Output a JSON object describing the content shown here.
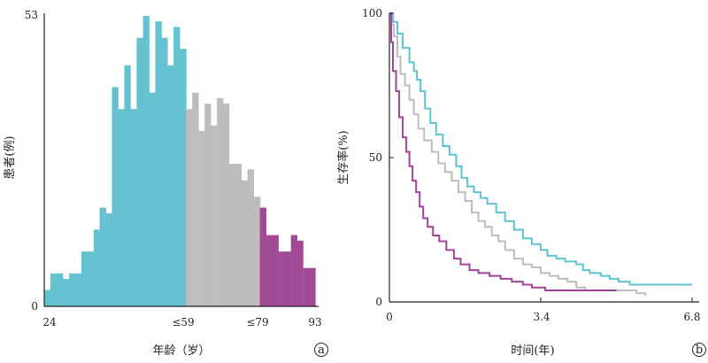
{
  "chart_data": [
    {
      "type": "bar",
      "title": "",
      "xlabel": "年龄（岁）",
      "ylabel": "患者(例)",
      "panel_label": "a",
      "x_tick_labels": [
        "24",
        "≤59",
        "≤79",
        "93"
      ],
      "y_tick_labels": [
        "0",
        "53"
      ],
      "xlim": [
        24,
        93
      ],
      "ylim": [
        0,
        53
      ],
      "grid": false,
      "legend": "none",
      "bin_width": 1.55,
      "groups": [
        {
          "color": "#65C2D0",
          "range": [
            24,
            59
          ]
        },
        {
          "color": "#BDBDBD",
          "range": [
            59,
            79
          ]
        },
        {
          "color": "#A24A96",
          "range": [
            79,
            93
          ]
        }
      ],
      "x": [
        24.8,
        26.3,
        27.9,
        29.4,
        31.0,
        32.5,
        34.1,
        35.6,
        37.2,
        38.7,
        40.3,
        41.8,
        43.4,
        44.9,
        46.5,
        48.0,
        49.6,
        51.1,
        52.7,
        54.2,
        55.8,
        57.3,
        58.9,
        60.4,
        62.0,
        63.5,
        65.1,
        66.6,
        68.2,
        69.7,
        71.3,
        72.8,
        74.4,
        75.9,
        77.5,
        79.0,
        80.6,
        82.1,
        83.7,
        85.2,
        86.8,
        88.3,
        89.9,
        91.4
      ],
      "values": [
        3,
        6,
        6,
        5,
        6,
        6,
        10,
        10,
        14,
        18,
        17,
        40,
        36,
        44,
        36,
        49,
        53,
        39,
        52,
        49,
        44,
        51,
        47,
        36,
        39,
        32,
        37,
        33,
        38,
        37,
        26,
        26,
        23,
        25,
        20,
        18,
        13,
        13,
        10,
        10,
        13,
        12,
        7,
        7
      ]
    },
    {
      "type": "line",
      "title": "",
      "xlabel": "时间(年)",
      "ylabel": "生存率(%)",
      "panel_label": "b",
      "x_tick_labels": [
        "0",
        "3.4",
        "6.8"
      ],
      "y_tick_labels": [
        "0",
        "50",
        "100"
      ],
      "xlim": [
        0,
        6.8
      ],
      "ylim": [
        0,
        100
      ],
      "grid": false,
      "legend": "none",
      "series": [
        {
          "color": "#5CC3D2",
          "points": [
            [
              0,
              100
            ],
            [
              0.08,
              97
            ],
            [
              0.18,
              93
            ],
            [
              0.3,
              88
            ],
            [
              0.45,
              83
            ],
            [
              0.55,
              80
            ],
            [
              0.62,
              77
            ],
            [
              0.7,
              73
            ],
            [
              0.8,
              67
            ],
            [
              0.92,
              62
            ],
            [
              1.05,
              58
            ],
            [
              1.2,
              54
            ],
            [
              1.35,
              51
            ],
            [
              1.5,
              47
            ],
            [
              1.62,
              43
            ],
            [
              1.75,
              40
            ],
            [
              1.9,
              38
            ],
            [
              2.05,
              36
            ],
            [
              2.2,
              34
            ],
            [
              2.4,
              31
            ],
            [
              2.6,
              28
            ],
            [
              2.8,
              25
            ],
            [
              3.0,
              22
            ],
            [
              3.2,
              20
            ],
            [
              3.4,
              18
            ],
            [
              3.55,
              16
            ],
            [
              3.75,
              15
            ],
            [
              3.95,
              14
            ],
            [
              4.2,
              13
            ],
            [
              4.35,
              11
            ],
            [
              4.5,
              10
            ],
            [
              4.75,
              9
            ],
            [
              4.95,
              8
            ],
            [
              5.15,
              7
            ],
            [
              5.4,
              6
            ],
            [
              5.7,
              6
            ],
            [
              6.8,
              6
            ]
          ]
        },
        {
          "color": "#BDBDBD",
          "points": [
            [
              0,
              100
            ],
            [
              0.05,
              96
            ],
            [
              0.1,
              92
            ],
            [
              0.18,
              85
            ],
            [
              0.25,
              79
            ],
            [
              0.35,
              75
            ],
            [
              0.45,
              70
            ],
            [
              0.55,
              65
            ],
            [
              0.65,
              60
            ],
            [
              0.78,
              56
            ],
            [
              0.95,
              52
            ],
            [
              1.1,
              48
            ],
            [
              1.25,
              45
            ],
            [
              1.4,
              42
            ],
            [
              1.55,
              38
            ],
            [
              1.7,
              35
            ],
            [
              1.85,
              31
            ],
            [
              2.0,
              28
            ],
            [
              2.15,
              26
            ],
            [
              2.3,
              23
            ],
            [
              2.45,
              21
            ],
            [
              2.6,
              18
            ],
            [
              2.8,
              15
            ],
            [
              3.0,
              13
            ],
            [
              3.2,
              12
            ],
            [
              3.4,
              10
            ],
            [
              3.6,
              9
            ],
            [
              3.8,
              8
            ],
            [
              4.0,
              7
            ],
            [
              4.2,
              5
            ],
            [
              4.4,
              4
            ],
            [
              5.0,
              4
            ],
            [
              5.55,
              3
            ],
            [
              5.75,
              2
            ]
          ]
        },
        {
          "color": "#A0449A",
          "points": [
            [
              0,
              100
            ],
            [
              0.04,
              90
            ],
            [
              0.08,
              80
            ],
            [
              0.15,
              73
            ],
            [
              0.22,
              64
            ],
            [
              0.3,
              57
            ],
            [
              0.38,
              52
            ],
            [
              0.45,
              47
            ],
            [
              0.52,
              42
            ],
            [
              0.6,
              38
            ],
            [
              0.68,
              33
            ],
            [
              0.76,
              29
            ],
            [
              0.86,
              26
            ],
            [
              0.98,
              23
            ],
            [
              1.12,
              21
            ],
            [
              1.28,
              18
            ],
            [
              1.45,
              15
            ],
            [
              1.6,
              13
            ],
            [
              1.8,
              11
            ],
            [
              2.0,
              10
            ],
            [
              2.25,
              9
            ],
            [
              2.5,
              8
            ],
            [
              2.75,
              7
            ],
            [
              3.0,
              6
            ],
            [
              3.2,
              5
            ],
            [
              3.5,
              4
            ],
            [
              4.5,
              4
            ],
            [
              5.1,
              4
            ]
          ]
        }
      ]
    }
  ]
}
